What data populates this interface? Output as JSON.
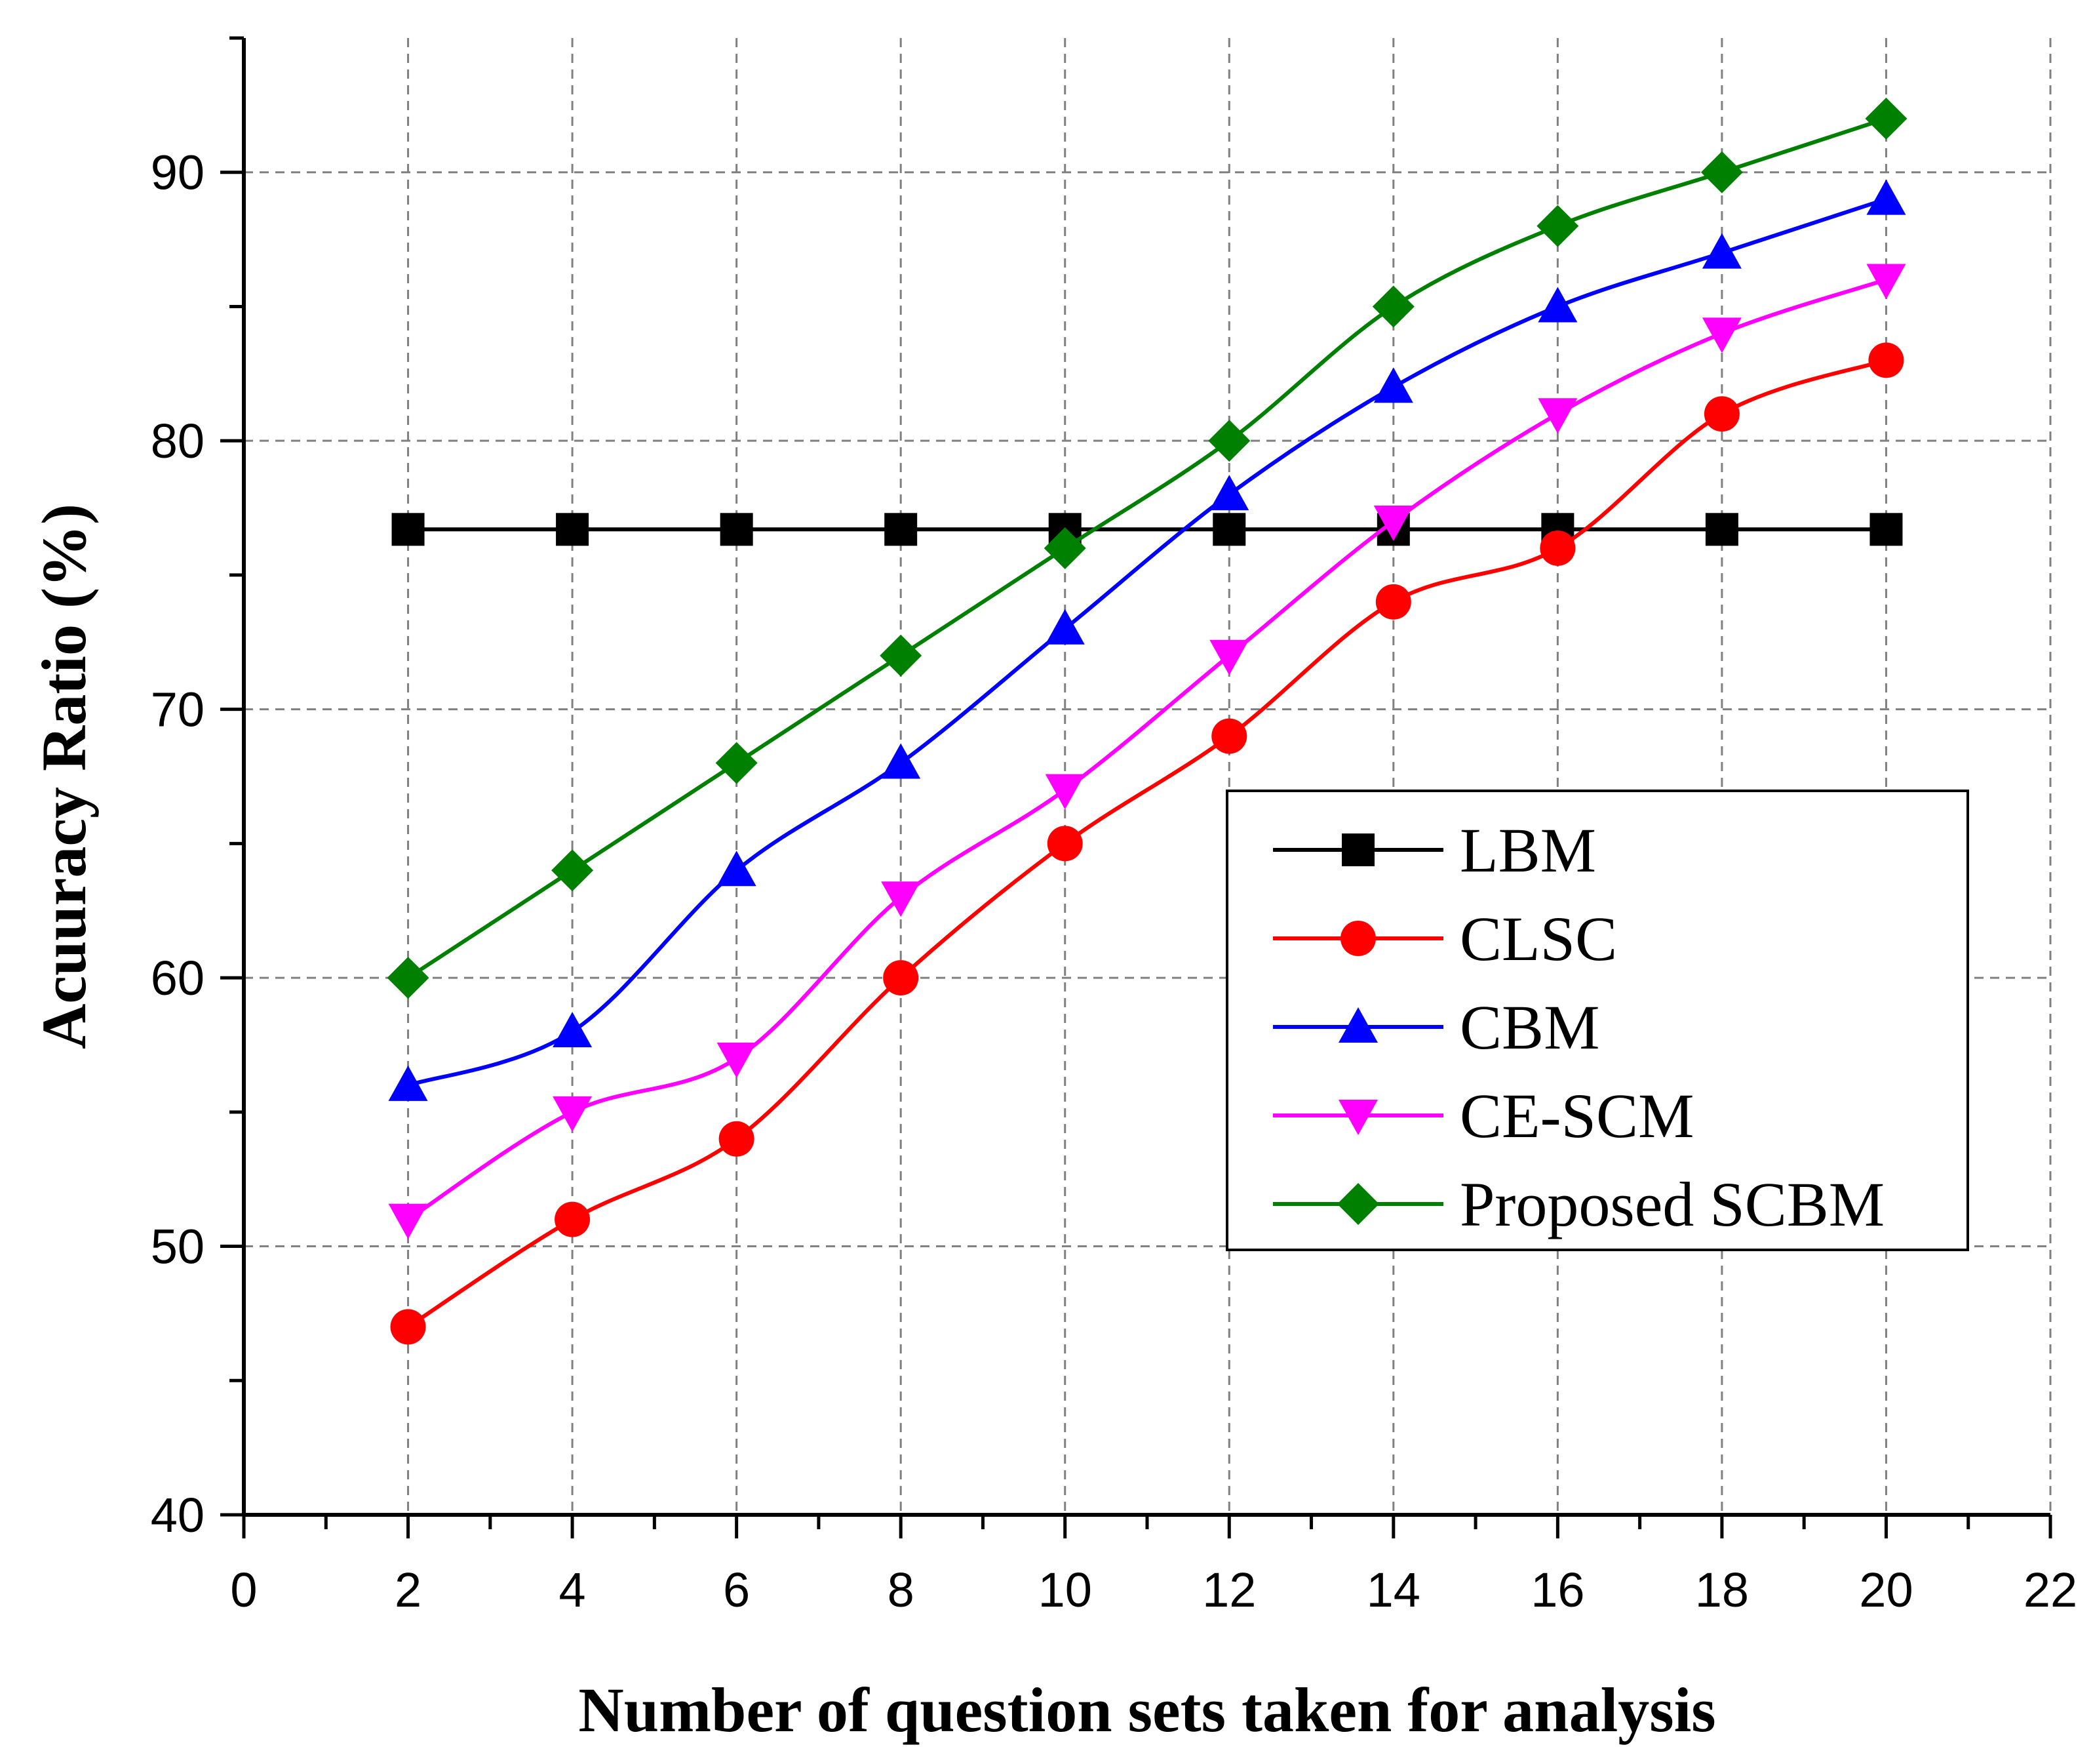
{
  "chart_data": {
    "type": "line",
    "title": "",
    "xlabel": "Number of question sets taken for analysis",
    "ylabel": "Acuuracy Ratio (%)",
    "xlim": [
      0,
      22
    ],
    "ylim": [
      40,
      95
    ],
    "xticks": [
      0,
      2,
      4,
      6,
      8,
      10,
      12,
      14,
      16,
      18,
      20,
      22
    ],
    "yticks": [
      40,
      50,
      60,
      70,
      80,
      90
    ],
    "grid": true,
    "legend_position": "right",
    "x": [
      2,
      4,
      6,
      8,
      10,
      12,
      14,
      16,
      18,
      20
    ],
    "series": [
      {
        "name": "LBM",
        "color": "#000000",
        "marker": "square",
        "values": [
          76.7,
          76.7,
          76.7,
          76.7,
          76.7,
          76.7,
          76.7,
          76.7,
          76.7,
          76.7
        ]
      },
      {
        "name": "CLSC",
        "color": "#ff0000",
        "marker": "circle",
        "values": [
          47,
          51,
          54,
          60,
          65,
          69,
          74,
          76,
          81,
          83
        ]
      },
      {
        "name": "CBM",
        "color": "#0000ff",
        "marker": "triangle-up",
        "values": [
          56,
          58,
          64,
          68,
          73,
          78,
          82,
          85,
          87,
          89
        ]
      },
      {
        "name": "CE-SCM",
        "color": "#ff00ff",
        "marker": "triangle-down",
        "values": [
          51,
          55,
          57,
          63,
          67,
          72,
          77,
          81,
          84,
          86
        ]
      },
      {
        "name": "Proposed SCBM",
        "color": "#008000",
        "marker": "diamond",
        "values": [
          60,
          64,
          68,
          72,
          76,
          80,
          85,
          88,
          90,
          92
        ]
      }
    ]
  }
}
